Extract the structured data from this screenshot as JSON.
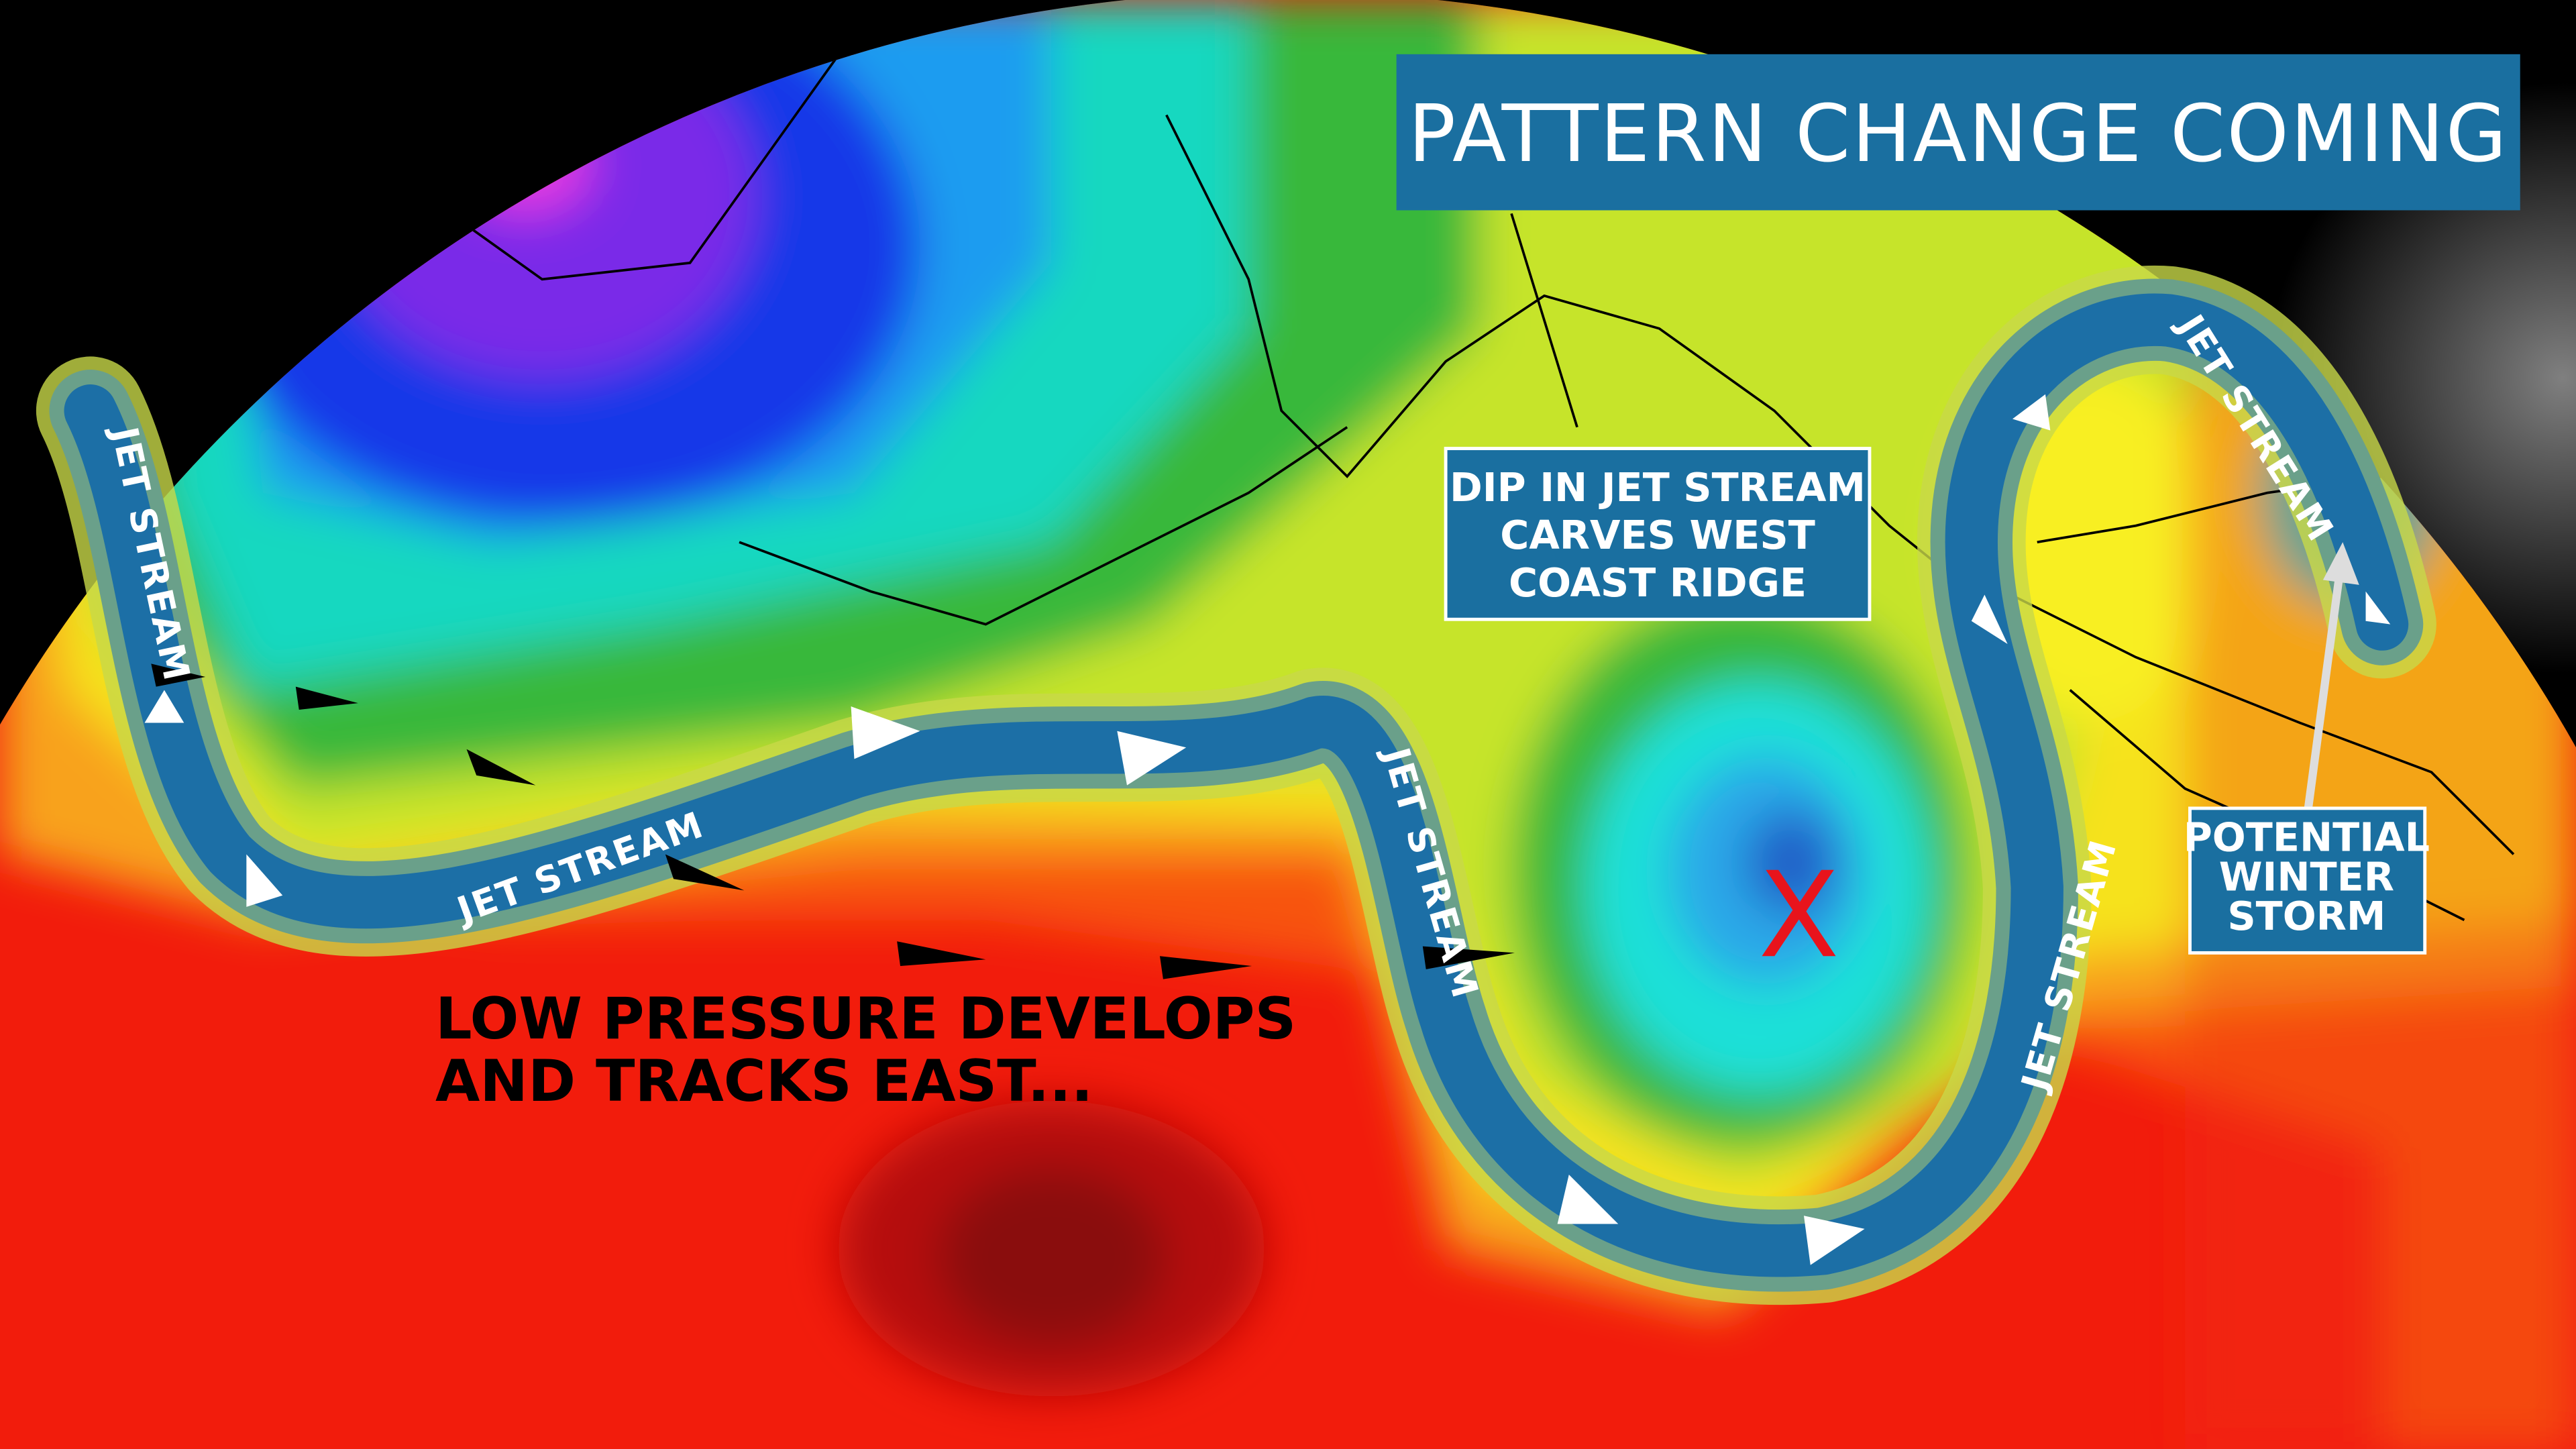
{
  "title": "PATTERN CHANGE COMING",
  "jet_stream_labels": [
    "JET STREAM",
    "JET STREAM",
    "JET STREAM",
    "JET STREAM",
    "JET STREAM"
  ],
  "dip_callout": [
    "DIP IN JET STREAM",
    "CARVES WEST",
    "COAST RIDGE"
  ],
  "storm_callout": [
    "POTENTIAL",
    "WINTER",
    "STORM"
  ],
  "low_pressure_note": [
    "LOW PRESSURE DEVELOPS",
    "AND TRACKS EAST..."
  ],
  "low_marker": "X"
}
